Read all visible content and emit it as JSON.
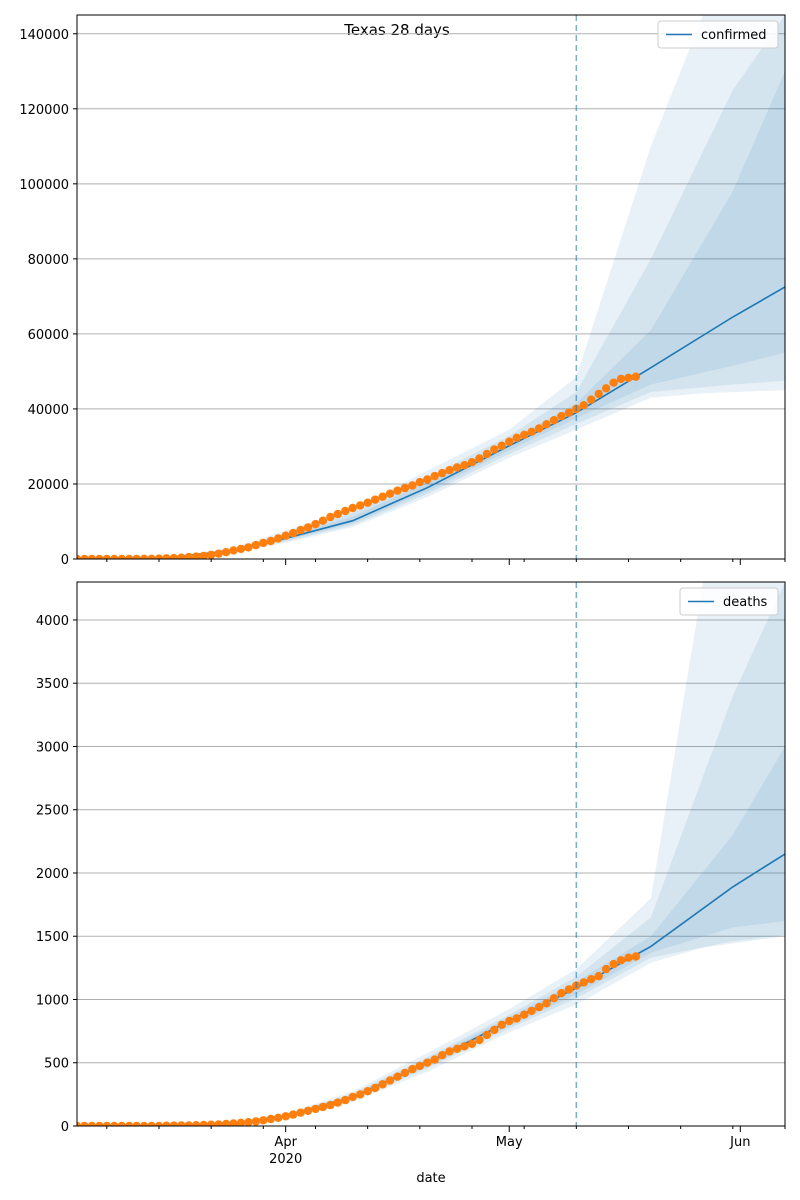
{
  "title": "Texas 28 days",
  "xlabel": "date",
  "x_ticks": [
    {
      "date": "2020-04-01",
      "label": "Apr",
      "sublabel": "2020"
    },
    {
      "date": "2020-05-01",
      "label": "May",
      "sublabel": ""
    },
    {
      "date": "2020-06-01",
      "label": "Jun",
      "sublabel": ""
    }
  ],
  "colors": {
    "model": "#1f77b4",
    "observed": "#ff7f0e",
    "band": "#1f77b4",
    "grid": "#b0b0b0",
    "forecast_line": "#1f77b4"
  },
  "chart_data": [
    {
      "type": "line",
      "panel": "top",
      "legend": "confirmed",
      "legend_position": "top-right",
      "grid": "y",
      "xlim": [
        "2020-03-04",
        "2020-06-07"
      ],
      "ylim": [
        0,
        145000
      ],
      "yticks": [
        0,
        20000,
        40000,
        60000,
        80000,
        100000,
        120000,
        140000
      ],
      "forecast_start": "2020-05-10",
      "observed": {
        "dates": [
          "2020-03-04",
          "2020-03-05",
          "2020-03-06",
          "2020-03-07",
          "2020-03-08",
          "2020-03-09",
          "2020-03-10",
          "2020-03-11",
          "2020-03-12",
          "2020-03-13",
          "2020-03-14",
          "2020-03-15",
          "2020-03-16",
          "2020-03-17",
          "2020-03-18",
          "2020-03-19",
          "2020-03-20",
          "2020-03-21",
          "2020-03-22",
          "2020-03-23",
          "2020-03-24",
          "2020-03-25",
          "2020-03-26",
          "2020-03-27",
          "2020-03-28",
          "2020-03-29",
          "2020-03-30",
          "2020-03-31",
          "2020-04-01",
          "2020-04-02",
          "2020-04-03",
          "2020-04-04",
          "2020-04-05",
          "2020-04-06",
          "2020-04-07",
          "2020-04-08",
          "2020-04-09",
          "2020-04-10",
          "2020-04-11",
          "2020-04-12",
          "2020-04-13",
          "2020-04-14",
          "2020-04-15",
          "2020-04-16",
          "2020-04-17",
          "2020-04-18",
          "2020-04-19",
          "2020-04-20",
          "2020-04-21",
          "2020-04-22",
          "2020-04-23",
          "2020-04-24",
          "2020-04-25",
          "2020-04-26",
          "2020-04-27",
          "2020-04-28",
          "2020-04-29",
          "2020-04-30",
          "2020-05-01",
          "2020-05-02",
          "2020-05-03",
          "2020-05-04",
          "2020-05-05",
          "2020-05-06",
          "2020-05-07",
          "2020-05-08",
          "2020-05-09",
          "2020-05-10",
          "2020-05-11",
          "2020-05-12",
          "2020-05-13",
          "2020-05-14",
          "2020-05-15",
          "2020-05-16",
          "2020-05-17",
          "2020-05-18"
        ],
        "values": [
          0,
          0,
          0,
          0,
          0,
          0,
          0,
          0,
          20,
          40,
          60,
          100,
          180,
          250,
          350,
          500,
          650,
          800,
          1100,
          1400,
          1800,
          2300,
          2700,
          3100,
          3700,
          4300,
          4800,
          5500,
          6200,
          6900,
          7700,
          8400,
          9300,
          10200,
          11200,
          12000,
          12800,
          13600,
          14300,
          15000,
          15800,
          16600,
          17400,
          18200,
          18900,
          19600,
          20500,
          21200,
          22100,
          22900,
          23700,
          24400,
          25000,
          25800,
          26800,
          28000,
          29200,
          30200,
          31300,
          32300,
          33100,
          33900,
          34800,
          35900,
          37000,
          38100,
          39000,
          40000,
          41000,
          42500,
          44000,
          45500,
          47000,
          48000,
          48300,
          48600
        ]
      },
      "model": {
        "dates": [
          "2020-03-04",
          "2020-03-15",
          "2020-03-25",
          "2020-04-01",
          "2020-04-10",
          "2020-04-20",
          "2020-05-01",
          "2020-05-10",
          "2020-05-20",
          "2020-05-31",
          "2020-06-07"
        ],
        "values": [
          0,
          100,
          2300,
          5500,
          10200,
          19000,
          30200,
          39000,
          51000,
          64500,
          72500
        ]
      },
      "bands": [
        {
          "dates": [
            "2020-03-04",
            "2020-03-15",
            "2020-03-25",
            "2020-04-01",
            "2020-04-10",
            "2020-04-20",
            "2020-05-01",
            "2020-05-10",
            "2020-05-20",
            "2020-05-27",
            "2020-06-07"
          ],
          "lower": [
            0,
            60,
            1700,
            4300,
            8500,
            16500,
            27000,
            34500,
            43000,
            44200,
            45000
          ],
          "upper": [
            0,
            150,
            3000,
            7600,
            13500,
            23500,
            34500,
            48500,
            110000,
            145000,
            145000
          ]
        },
        {
          "dates": [
            "2020-03-04",
            "2020-03-15",
            "2020-03-25",
            "2020-04-01",
            "2020-04-10",
            "2020-04-20",
            "2020-05-01",
            "2020-05-10",
            "2020-05-20",
            "2020-05-31",
            "2020-06-07"
          ],
          "lower": [
            0,
            70,
            1900,
            4700,
            9000,
            17300,
            28000,
            36000,
            44500,
            46500,
            47500
          ],
          "upper": [
            0,
            130,
            2700,
            6800,
            12300,
            21800,
            32800,
            44500,
            80000,
            125000,
            145000
          ]
        },
        {
          "dates": [
            "2020-03-04",
            "2020-03-15",
            "2020-03-25",
            "2020-04-01",
            "2020-04-10",
            "2020-04-20",
            "2020-05-01",
            "2020-05-10",
            "2020-05-20",
            "2020-05-31",
            "2020-06-07"
          ],
          "lower": [
            0,
            80,
            2100,
            5000,
            9500,
            18000,
            29000,
            37500,
            46500,
            51500,
            55000
          ],
          "upper": [
            0,
            120,
            2500,
            6200,
            11300,
            20500,
            31500,
            41500,
            61000,
            98000,
            130000
          ]
        }
      ]
    },
    {
      "type": "line",
      "panel": "bottom",
      "legend": "deaths",
      "legend_position": "top-right",
      "grid": "y",
      "xlim": [
        "2020-03-04",
        "2020-06-07"
      ],
      "ylim": [
        0,
        4300
      ],
      "yticks": [
        0,
        500,
        1000,
        1500,
        2000,
        2500,
        3000,
        3500,
        4000
      ],
      "forecast_start": "2020-05-10",
      "observed": {
        "dates": [
          "2020-03-04",
          "2020-03-05",
          "2020-03-06",
          "2020-03-07",
          "2020-03-08",
          "2020-03-09",
          "2020-03-10",
          "2020-03-11",
          "2020-03-12",
          "2020-03-13",
          "2020-03-14",
          "2020-03-15",
          "2020-03-16",
          "2020-03-17",
          "2020-03-18",
          "2020-03-19",
          "2020-03-20",
          "2020-03-21",
          "2020-03-22",
          "2020-03-23",
          "2020-03-24",
          "2020-03-25",
          "2020-03-26",
          "2020-03-27",
          "2020-03-28",
          "2020-03-29",
          "2020-03-30",
          "2020-03-31",
          "2020-04-01",
          "2020-04-02",
          "2020-04-03",
          "2020-04-04",
          "2020-04-05",
          "2020-04-06",
          "2020-04-07",
          "2020-04-08",
          "2020-04-09",
          "2020-04-10",
          "2020-04-11",
          "2020-04-12",
          "2020-04-13",
          "2020-04-14",
          "2020-04-15",
          "2020-04-16",
          "2020-04-17",
          "2020-04-18",
          "2020-04-19",
          "2020-04-20",
          "2020-04-21",
          "2020-04-22",
          "2020-04-23",
          "2020-04-24",
          "2020-04-25",
          "2020-04-26",
          "2020-04-27",
          "2020-04-28",
          "2020-04-29",
          "2020-04-30",
          "2020-05-01",
          "2020-05-02",
          "2020-05-03",
          "2020-05-04",
          "2020-05-05",
          "2020-05-06",
          "2020-05-07",
          "2020-05-08",
          "2020-05-09",
          "2020-05-10",
          "2020-05-11",
          "2020-05-12",
          "2020-05-13",
          "2020-05-14",
          "2020-05-15",
          "2020-05-16",
          "2020-05-17",
          "2020-05-18"
        ],
        "values": [
          0,
          0,
          0,
          0,
          0,
          0,
          0,
          0,
          0,
          0,
          0,
          0,
          2,
          3,
          4,
          5,
          6,
          8,
          10,
          12,
          16,
          20,
          25,
          30,
          36,
          45,
          55,
          65,
          77,
          90,
          105,
          120,
          135,
          150,
          165,
          185,
          205,
          230,
          250,
          275,
          300,
          330,
          360,
          390,
          420,
          450,
          475,
          500,
          525,
          560,
          590,
          610,
          630,
          650,
          680,
          720,
          760,
          800,
          830,
          850,
          880,
          910,
          940,
          970,
          1010,
          1050,
          1080,
          1110,
          1135,
          1160,
          1185,
          1240,
          1280,
          1310,
          1330,
          1340
        ]
      },
      "model": {
        "dates": [
          "2020-03-04",
          "2020-03-15",
          "2020-03-25",
          "2020-04-01",
          "2020-04-10",
          "2020-04-20",
          "2020-05-01",
          "2020-05-10",
          "2020-05-20",
          "2020-05-31",
          "2020-06-07"
        ],
        "values": [
          0,
          1,
          20,
          80,
          230,
          500,
          830,
          1090,
          1420,
          1890,
          2150
        ]
      },
      "bands": [
        {
          "dates": [
            "2020-03-04",
            "2020-03-15",
            "2020-03-25",
            "2020-04-01",
            "2020-04-10",
            "2020-04-20",
            "2020-05-01",
            "2020-05-10",
            "2020-05-20",
            "2020-05-27",
            "2020-06-07"
          ],
          "lower": [
            0,
            0,
            14,
            62,
            190,
            430,
            740,
            960,
            1290,
            1410,
            1500
          ],
          "upper": [
            0,
            2,
            27,
            98,
            275,
            575,
            925,
            1240,
            1800,
            4300,
            4300
          ]
        },
        {
          "dates": [
            "2020-03-04",
            "2020-03-15",
            "2020-03-25",
            "2020-04-01",
            "2020-04-10",
            "2020-04-20",
            "2020-05-01",
            "2020-05-10",
            "2020-05-20",
            "2020-05-31",
            "2020-06-07"
          ],
          "lower": [
            0,
            0,
            16,
            68,
            205,
            455,
            770,
            1010,
            1330,
            1460,
            1510
          ],
          "upper": [
            0,
            2,
            24,
            92,
            258,
            545,
            880,
            1180,
            1650,
            3400,
            4300
          ]
        },
        {
          "dates": [
            "2020-03-04",
            "2020-03-15",
            "2020-03-25",
            "2020-04-01",
            "2020-04-10",
            "2020-04-20",
            "2020-05-01",
            "2020-05-10",
            "2020-05-20",
            "2020-05-31",
            "2020-06-07"
          ],
          "lower": [
            0,
            0,
            18,
            72,
            215,
            470,
            790,
            1040,
            1370,
            1570,
            1620
          ],
          "upper": [
            0,
            1,
            22,
            88,
            245,
            528,
            860,
            1140,
            1500,
            2300,
            3000
          ]
        }
      ]
    }
  ]
}
